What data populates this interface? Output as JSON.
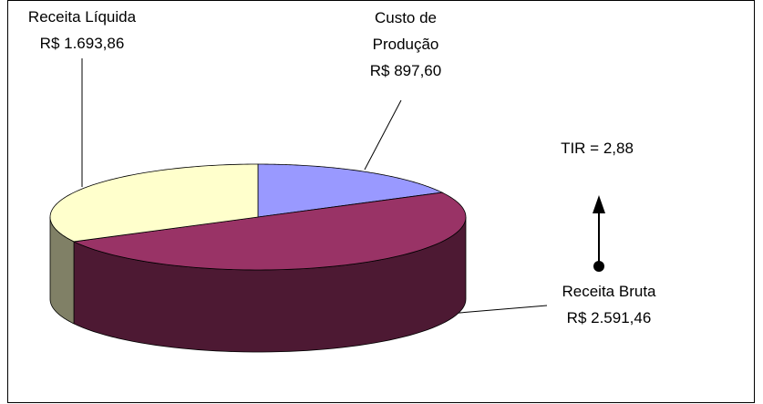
{
  "chart_data": {
    "type": "pie",
    "categories": [
      "Custo de Produção",
      "Receita Bruta",
      "Receita Líquida"
    ],
    "values": [
      897.6,
      2591.46,
      1693.86
    ],
    "value_labels": [
      "R$ 897,60",
      "R$ 2.591,46",
      "R$ 1.693,86"
    ],
    "colors": [
      "#9999ff",
      "#993366",
      "#ffffcc"
    ],
    "side_colors": [
      "#4d4d80",
      "#4d1933",
      "#808066"
    ],
    "annotation": "TIR = 2,88"
  }
}
